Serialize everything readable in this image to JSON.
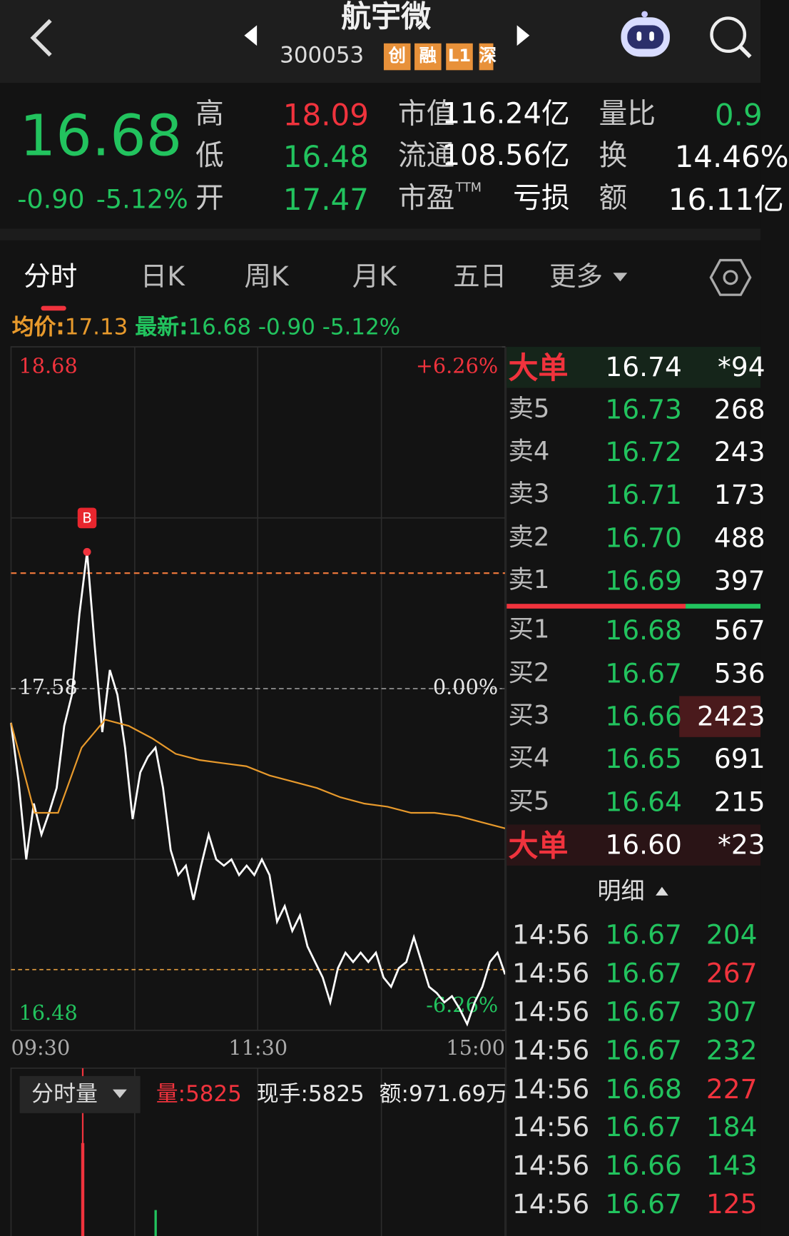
{
  "header": {
    "title": "航宇微",
    "code": "300053",
    "badges": [
      "创",
      "融",
      "L1",
      "深"
    ]
  },
  "quote": {
    "price": "16.68",
    "change": "-0.90",
    "change_pct": "-5.12%",
    "fields": [
      {
        "label": "高",
        "value": "18.09",
        "color": "#f0333d"
      },
      {
        "label": "低",
        "value": "16.48",
        "color": "#22c35e"
      },
      {
        "label": "开",
        "value": "17.47",
        "color": "#22c35e"
      }
    ],
    "stats": [
      {
        "label": "市值",
        "value": "116.24亿"
      },
      {
        "label": "流通",
        "value": "108.56亿"
      },
      {
        "label": "市盈",
        "sup": "TTM",
        "value": "亏损"
      }
    ],
    "stats2": [
      {
        "label": "量比",
        "value": "0.9",
        "color": "#22c35e"
      },
      {
        "label": "换",
        "value": "14.46%",
        "color": "#ffffff"
      },
      {
        "label": "额",
        "value": "16.11亿",
        "color": "#ffffff"
      }
    ]
  },
  "tabs": [
    "分时",
    "日K",
    "周K",
    "月K",
    "五日",
    "更多"
  ],
  "info": {
    "avg_label": "均价:",
    "avg": "17.13",
    "latest_label": "最新:",
    "latest": "16.68",
    "change": "-0.90",
    "change_pct": "-5.12%"
  },
  "chart_data": {
    "type": "line",
    "ylim": [
      16.48,
      18.68
    ],
    "yticks": [
      18.68,
      17.58,
      16.48
    ],
    "y2lim": [
      -6.26,
      6.26
    ],
    "y2ticks": [
      {
        "value": 6.26,
        "label": "+6.26%"
      },
      {
        "value": 0,
        "label": "0.00%"
      },
      {
        "value": -6.26,
        "label": "-6.26%"
      }
    ],
    "x_labels": [
      "09:30",
      "11:30",
      "15:00"
    ],
    "annotation": "B",
    "series": [
      {
        "color": "#ffffff",
        "values": [
          17.47,
          17.28,
          17.03,
          17.21,
          17.11,
          17.18,
          17.26,
          17.46,
          17.56,
          17.82,
          18.02,
          17.72,
          17.44,
          17.64,
          17.56,
          17.39,
          17.16,
          17.31,
          17.36,
          17.39,
          17.26,
          17.06,
          16.98,
          17.01,
          16.9,
          17.01,
          17.11,
          17.03,
          17.01,
          17.03,
          16.98,
          17.01,
          16.98,
          17.03,
          16.98,
          16.83,
          16.88,
          16.8,
          16.85,
          16.75,
          16.7,
          16.65,
          16.57,
          16.68,
          16.73,
          16.7,
          16.73,
          16.7,
          16.73,
          16.65,
          16.62,
          16.68,
          16.7,
          16.78,
          16.7,
          16.62,
          16.6,
          16.57,
          16.59,
          16.55,
          16.5,
          16.57,
          16.62,
          16.7,
          16.73,
          16.66
        ]
      },
      {
        "color": "#e89a2c",
        "values": [
          17.47,
          17.18,
          17.18,
          17.39,
          17.48,
          17.46,
          17.42,
          17.37,
          17.35,
          17.34,
          17.33,
          17.3,
          17.28,
          17.26,
          17.23,
          17.21,
          17.2,
          17.18,
          17.18,
          17.17,
          17.15,
          17.13
        ]
      }
    ]
  },
  "volume": {
    "selector": "分时量",
    "vol_label": "量:",
    "vol": "5825",
    "hand_label": "现手:",
    "hand": "5825",
    "amount_label": "额:",
    "amount": "971.69万"
  },
  "order_book": {
    "big_sell": {
      "label": "大单",
      "price": "16.74",
      "volume": "*94"
    },
    "asks": [
      {
        "label": "卖5",
        "price": "16.73",
        "volume": "268"
      },
      {
        "label": "卖4",
        "price": "16.72",
        "volume": "243"
      },
      {
        "label": "卖3",
        "price": "16.71",
        "volume": "173"
      },
      {
        "label": "卖2",
        "price": "16.70",
        "volume": "488"
      },
      {
        "label": "卖1",
        "price": "16.69",
        "volume": "397"
      }
    ],
    "bids": [
      {
        "label": "买1",
        "price": "16.68",
        "volume": "567"
      },
      {
        "label": "买2",
        "price": "16.67",
        "volume": "536"
      },
      {
        "label": "买3",
        "price": "16.66",
        "volume": "2423"
      },
      {
        "label": "买4",
        "price": "16.65",
        "volume": "691"
      },
      {
        "label": "买5",
        "price": "16.64",
        "volume": "215"
      }
    ],
    "big_buy": {
      "label": "大单",
      "price": "16.60",
      "volume": "*23"
    }
  },
  "detail_title": "明细",
  "trades": [
    {
      "time": "14:56",
      "price": "16.67",
      "volume": "204",
      "color": "#22c35e"
    },
    {
      "time": "14:56",
      "price": "16.67",
      "volume": "267",
      "color": "#f0333d"
    },
    {
      "time": "14:56",
      "price": "16.67",
      "volume": "307",
      "color": "#22c35e"
    },
    {
      "time": "14:56",
      "price": "16.67",
      "volume": "232",
      "color": "#22c35e"
    },
    {
      "time": "14:56",
      "price": "16.68",
      "volume": "227",
      "color": "#f0333d"
    },
    {
      "time": "14:56",
      "price": "16.67",
      "volume": "184",
      "color": "#22c35e"
    },
    {
      "time": "14:56",
      "price": "16.66",
      "volume": "143",
      "color": "#22c35e"
    },
    {
      "time": "14:56",
      "price": "16.67",
      "volume": "125",
      "color": "#f0333d"
    }
  ]
}
